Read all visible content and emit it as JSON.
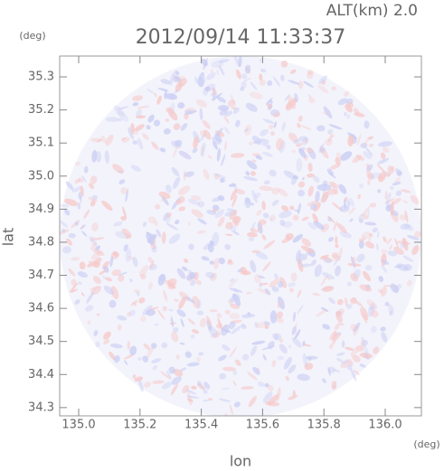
{
  "chart_data": {
    "type": "radar-image",
    "title": "2012/09/14 11:33:37",
    "subtitle": "ALT(km) 2.0",
    "x_label": "lon",
    "x_unit": "(deg)",
    "y_label": "lat",
    "y_unit": "(deg)",
    "xlim": [
      134.938,
      136.118
    ],
    "ylim": [
      34.275,
      35.363
    ],
    "xticks": [
      {
        "value": 135.0,
        "label": "135.0"
      },
      135.2,
      135.4,
      135.6,
      135.8,
      {
        "value": 136.0,
        "label": "136.0"
      }
    ],
    "yticks": [
      34.3,
      34.4,
      34.5,
      34.6,
      34.7,
      34.8,
      34.9,
      {
        "value": 35.0,
        "label": "35.0"
      },
      35.1,
      35.2,
      35.3
    ]
  }
}
